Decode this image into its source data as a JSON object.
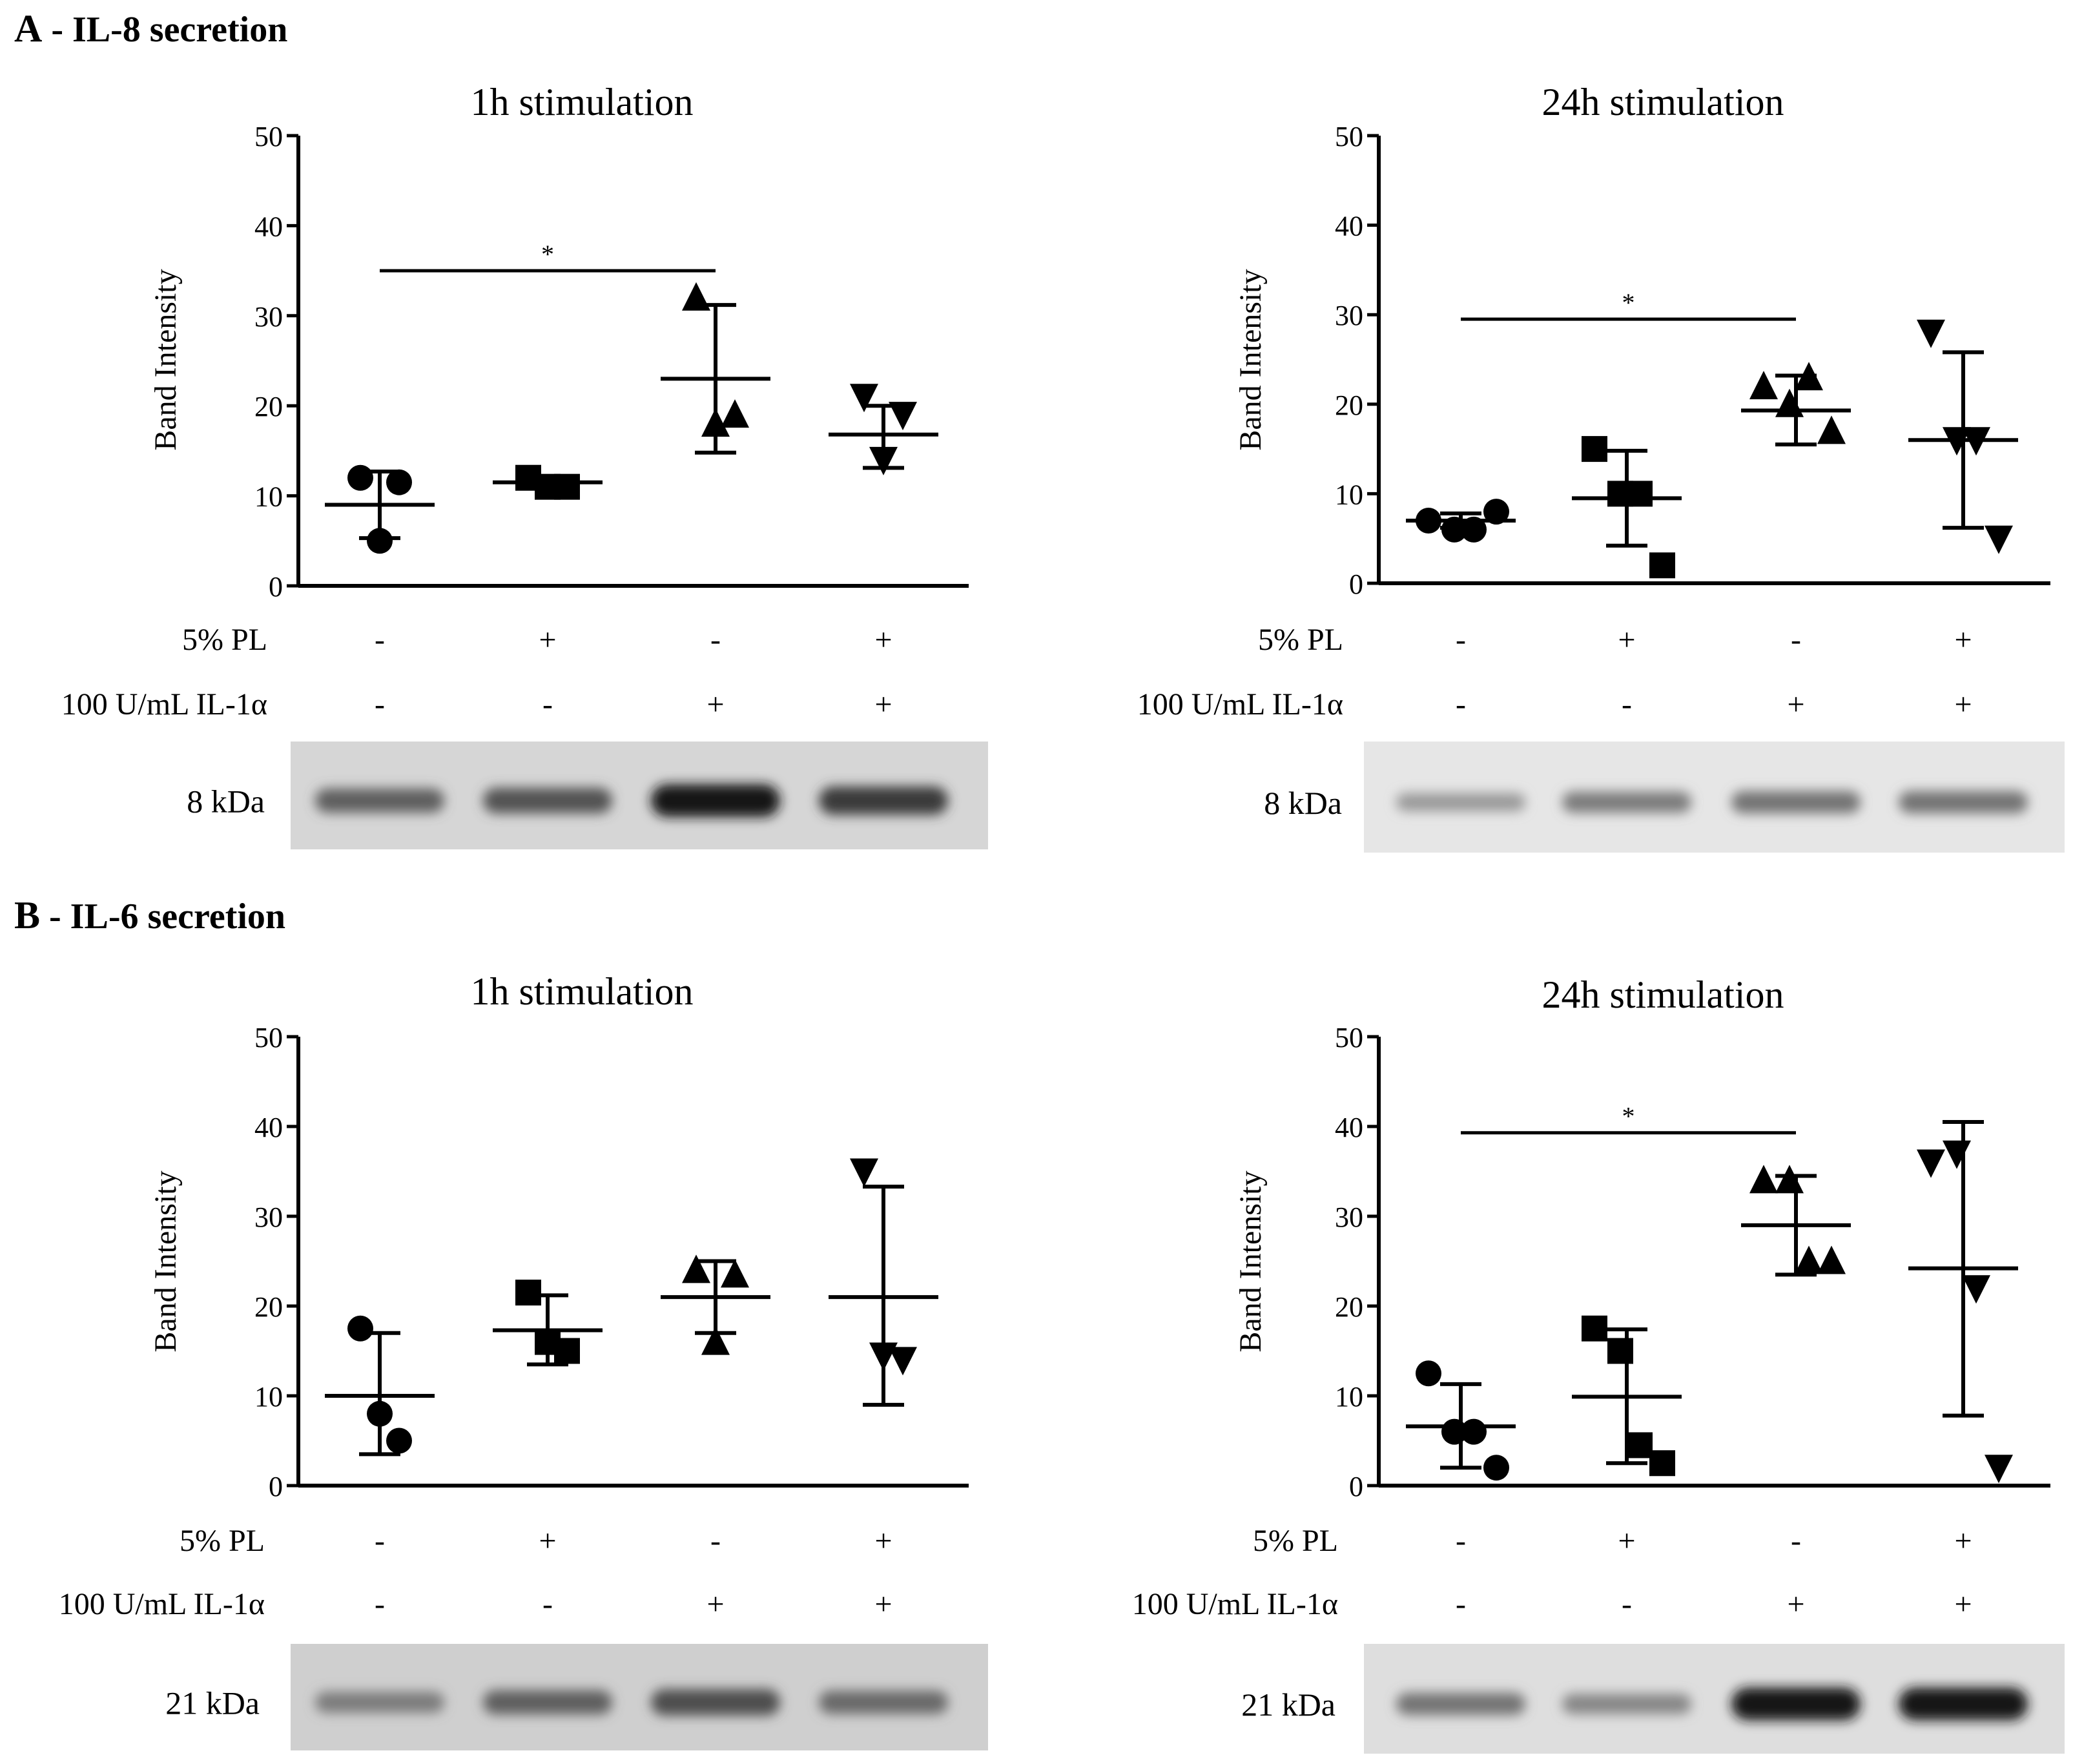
{
  "sections": [
    {
      "letter": "A",
      "title": " - IL-8 secretion"
    },
    {
      "letter": "B",
      "title": " - IL-6 secretion"
    }
  ],
  "conditions": {
    "pl_label": "5% PL",
    "il_label": "100 U/mL IL-1α",
    "pl_signs": [
      "-",
      "+",
      "-",
      "+"
    ],
    "il_signs": [
      "-",
      "-",
      "+",
      "+"
    ]
  },
  "chart_data": [
    {
      "type": "scatter",
      "panel": "A-left",
      "title": "1h stimulation",
      "ylabel": "Band Intensity",
      "ylim": [
        0,
        50
      ],
      "yticks": [
        0,
        10,
        20,
        30,
        40,
        50
      ],
      "marker_colors": "#000000",
      "groups": [
        {
          "marker": "circle",
          "points": [
            12,
            11.5,
            5
          ],
          "mean": 9,
          "sd_low": 5.3,
          "sd_high": 12.7
        },
        {
          "marker": "square",
          "points": [
            12,
            11,
            11
          ],
          "mean": 11.5,
          "sd_low": 11,
          "sd_high": 12
        },
        {
          "marker": "triangle-up",
          "points": [
            32,
            19,
            18
          ],
          "mean": 23,
          "sd_low": 14.8,
          "sd_high": 31.2
        },
        {
          "marker": "triangle-down",
          "points": [
            21,
            19,
            14
          ],
          "mean": 16.8,
          "sd_low": 13.1,
          "sd_high": 20
        }
      ],
      "significance": {
        "from": 1,
        "to": 3,
        "y": 35,
        "label": "*"
      },
      "blot": {
        "label": "8 kDa",
        "bg": "#d6d6d6",
        "bands": [
          0.55,
          0.62,
          0.95,
          0.75
        ]
      }
    },
    {
      "type": "scatter",
      "panel": "A-right",
      "title": "24h stimulation",
      "ylabel": "Band Intensity",
      "ylim": [
        0,
        50
      ],
      "yticks": [
        0,
        10,
        20,
        30,
        40,
        50
      ],
      "groups": [
        {
          "marker": "circle",
          "points": [
            7,
            6,
            6,
            8
          ],
          "mean": 7,
          "sd_low": 6.2,
          "sd_high": 7.8
        },
        {
          "marker": "square",
          "points": [
            15,
            10,
            10,
            2
          ],
          "mean": 9.5,
          "sd_low": 4.2,
          "sd_high": 14.8
        },
        {
          "marker": "triangle-up",
          "points": [
            22,
            20,
            23,
            17
          ],
          "mean": 19.3,
          "sd_low": 15.5,
          "sd_high": 23.2
        },
        {
          "marker": "triangle-down",
          "points": [
            28,
            16,
            16,
            5
          ],
          "mean": 16,
          "sd_low": 6.2,
          "sd_high": 25.8
        }
      ],
      "significance": {
        "from": 1,
        "to": 3,
        "y": 29.5,
        "label": "*"
      },
      "blot": {
        "label": "8 kDa",
        "bg": "#e6e6e6",
        "bands": [
          0.25,
          0.4,
          0.45,
          0.45
        ]
      }
    },
    {
      "type": "scatter",
      "panel": "B-left",
      "title": "1h stimulation",
      "ylabel": "Band Intensity",
      "ylim": [
        0,
        50
      ],
      "yticks": [
        0,
        10,
        20,
        30,
        40,
        50
      ],
      "groups": [
        {
          "marker": "circle",
          "points": [
            17.5,
            5,
            8
          ],
          "mean": 10,
          "sd_low": 3.5,
          "sd_high": 17
        },
        {
          "marker": "square",
          "points": [
            21.5,
            15,
            16
          ],
          "mean": 17.3,
          "sd_low": 13.5,
          "sd_high": 21.2
        },
        {
          "marker": "triangle-up",
          "points": [
            24,
            23.5,
            16
          ],
          "mean": 21,
          "sd_low": 17,
          "sd_high": 25
        },
        {
          "marker": "triangle-down",
          "points": [
            35,
            14,
            14.5
          ],
          "mean": 21,
          "sd_low": 9,
          "sd_high": 33.3
        }
      ],
      "blot": {
        "label": "21 kDa",
        "bg": "#cfcfcf",
        "bands": [
          0.4,
          0.55,
          0.65,
          0.5
        ]
      }
    },
    {
      "type": "scatter",
      "panel": "B-right",
      "title": "24h stimulation",
      "ylabel": "Band Intensity",
      "ylim": [
        0,
        50
      ],
      "yticks": [
        0,
        10,
        20,
        30,
        40,
        50
      ],
      "groups": [
        {
          "marker": "circle",
          "points": [
            12.5,
            6,
            6,
            2
          ],
          "mean": 6.6,
          "sd_low": 2,
          "sd_high": 11.3
        },
        {
          "marker": "square",
          "points": [
            17.5,
            15,
            4.5,
            2.5
          ],
          "mean": 9.9,
          "sd_low": 2.5,
          "sd_high": 17.4
        },
        {
          "marker": "triangle-up",
          "points": [
            34,
            34,
            25,
            25
          ],
          "mean": 29,
          "sd_low": 23.5,
          "sd_high": 34.5
        },
        {
          "marker": "triangle-down",
          "points": [
            36,
            37,
            22,
            2
          ],
          "mean": 24.2,
          "sd_low": 7.8,
          "sd_high": 40.5
        }
      ],
      "significance": {
        "from": 1,
        "to": 3,
        "y": 39.3,
        "label": "*"
      },
      "blot": {
        "label": "21 kDa",
        "bg": "#dedede",
        "bands": [
          0.45,
          0.35,
          0.95,
          0.95
        ]
      }
    }
  ]
}
